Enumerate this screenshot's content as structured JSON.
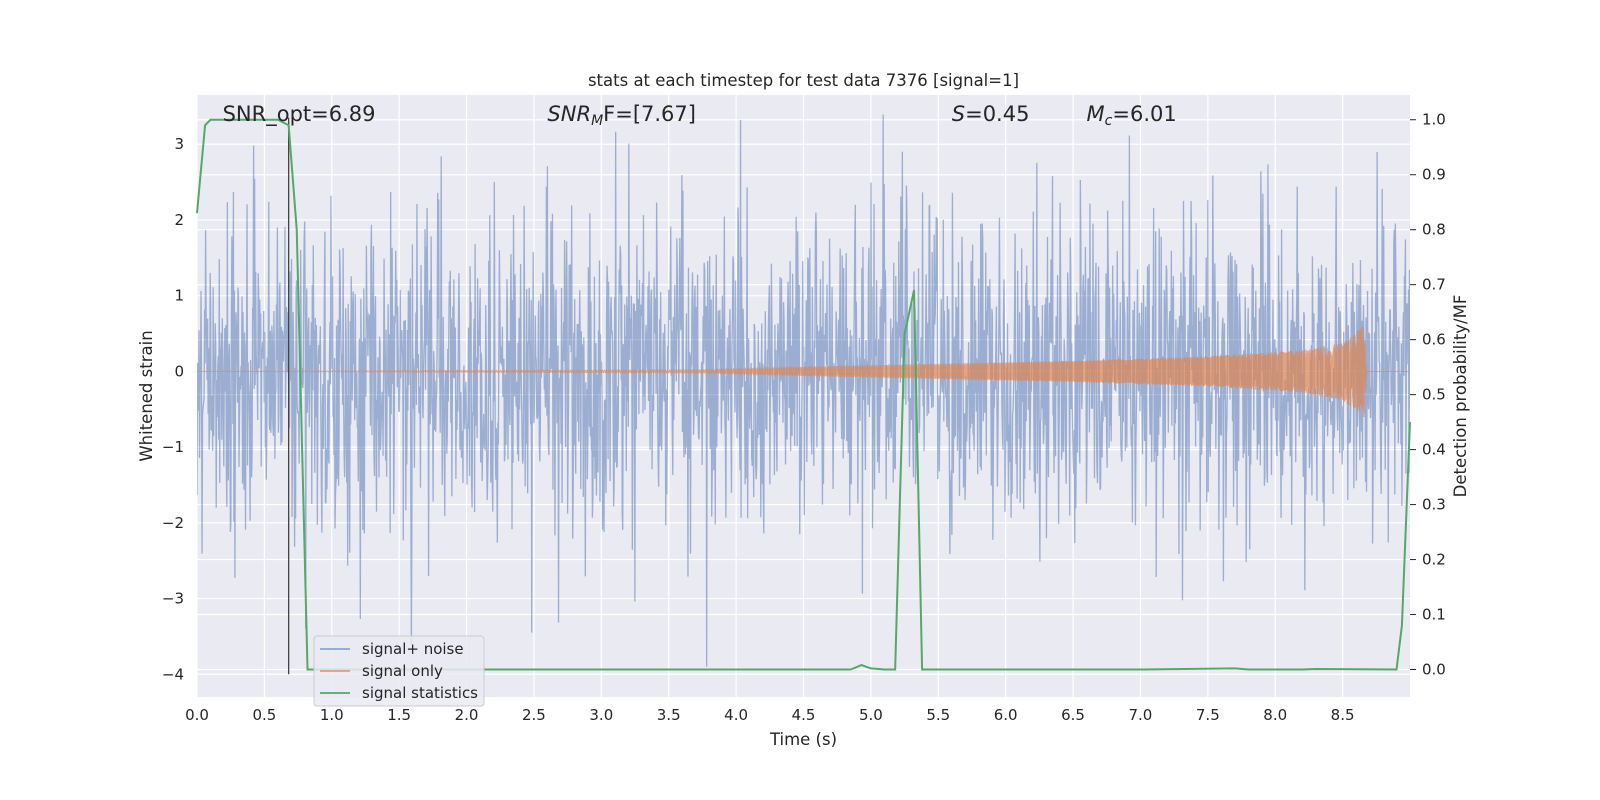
{
  "chart_data": {
    "type": "line",
    "title": "stats at each timestep for test data 7376 [signal=1]",
    "xlabel": "Time (s)",
    "ylabel_left": "Whitened strain",
    "ylabel_right": "Detection probability/MF",
    "xlim": [
      0.0,
      9.0
    ],
    "ylim_left": [
      -4.3,
      3.65
    ],
    "ylim_right": [
      -0.05,
      1.045
    ],
    "xticks": [
      "0.0",
      "0.5",
      "1.0",
      "1.5",
      "2.0",
      "2.5",
      "3.0",
      "3.5",
      "4.0",
      "4.5",
      "5.0",
      "5.5",
      "6.0",
      "6.5",
      "7.0",
      "7.5",
      "8.0",
      "8.5"
    ],
    "yticks_left": [
      "−4",
      "−3",
      "−2",
      "−1",
      "0",
      "1",
      "2",
      "3"
    ],
    "yticks_right": [
      "0.0",
      "0.1",
      "0.2",
      "0.3",
      "0.4",
      "0.5",
      "0.6",
      "0.7",
      "0.8",
      "0.9",
      "1.0"
    ],
    "grid": true,
    "legend_placement": "lower-left",
    "annotations": {
      "snr_opt": "SNR_opt=6.89",
      "snr_mf_italic": "SNR",
      "snr_mf_sub": "M",
      "snr_mf_rest": "F=[7.67]",
      "s_italic": "S",
      "s_rest": "=0.45",
      "mc_italic": "M",
      "mc_sub": "c",
      "mc_rest": "=6.01"
    },
    "vline_x": 0.68,
    "colors": {
      "background": "#eaeaf2",
      "grid": "#ffffff",
      "noise": "#4c72b0",
      "signal": "#dd8452",
      "stats": "#55a868",
      "vline": "#444444"
    },
    "series": [
      {
        "name": "signal+ noise",
        "axis": "left",
        "kind": "noise",
        "amplitude": 1.0,
        "x_range": [
          0.0,
          9.0
        ]
      },
      {
        "name": "signal only",
        "axis": "left",
        "kind": "chirp",
        "envelope": [
          [
            0.0,
            0.0
          ],
          [
            3.8,
            0.02
          ],
          [
            4.5,
            0.06
          ],
          [
            5.5,
            0.1
          ],
          [
            6.5,
            0.14
          ],
          [
            7.5,
            0.2
          ],
          [
            8.2,
            0.28
          ],
          [
            8.5,
            0.38
          ],
          [
            8.62,
            0.55
          ],
          [
            8.66,
            0.62
          ],
          [
            8.68,
            0.0
          ],
          [
            9.0,
            0.0
          ]
        ]
      },
      {
        "name": "signal statistics",
        "axis": "right",
        "kind": "line",
        "x": [
          0.0,
          0.06,
          0.1,
          0.15,
          0.3,
          0.5,
          0.6,
          0.68,
          0.74,
          0.82,
          1.0,
          2.0,
          3.0,
          4.0,
          4.85,
          4.93,
          5.0,
          5.1,
          5.18,
          5.25,
          5.32,
          5.38,
          5.5,
          6.0,
          7.0,
          7.7,
          7.8,
          8.2,
          8.3,
          8.9,
          8.94,
          9.0
        ],
        "y": [
          0.83,
          0.99,
          1.0,
          1.0,
          1.0,
          1.0,
          1.0,
          0.99,
          0.8,
          0.0,
          0.0,
          0.0,
          0.0,
          0.0,
          0.0,
          0.008,
          0.002,
          0.0,
          0.0,
          0.61,
          0.69,
          0.0,
          0.0,
          0.0,
          0.0,
          0.002,
          0.0,
          0.0,
          0.001,
          0.0,
          0.08,
          0.45
        ]
      }
    ]
  }
}
